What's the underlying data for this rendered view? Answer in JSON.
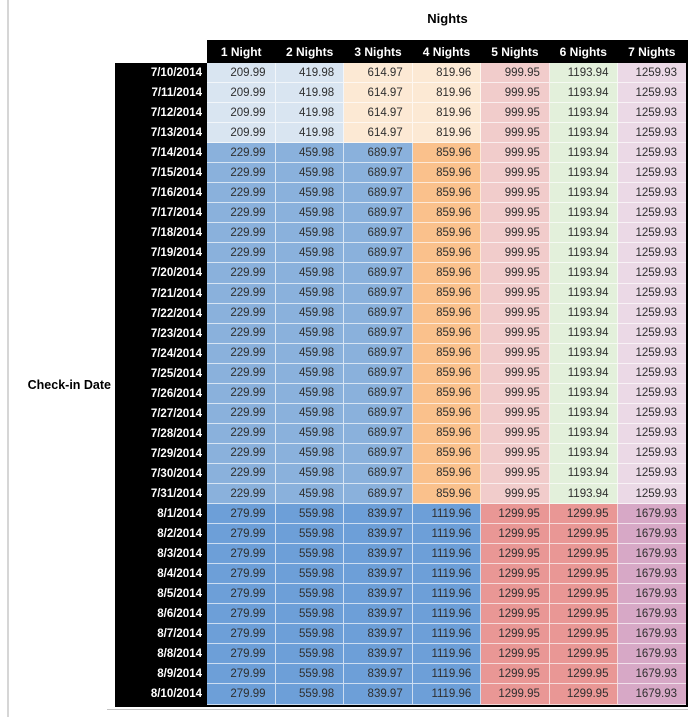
{
  "page": {
    "background": "#ffffff",
    "left_gridline_color": "#d6d6d6"
  },
  "colors": {
    "header_bg": "#000000",
    "header_text": "#ffffff",
    "value_text": "#2f2f2f",
    "bands": {
      "early": [
        "#D9E5F1",
        "#D9E5F1",
        "#FCE9D4",
        "#FCE9D4",
        "#F1CCCB",
        "#E3F0DB",
        "#EBD9E6"
      ],
      "mid": [
        "#8AB1DC",
        "#8AB1DC",
        "#8AB1DC",
        "#FAC18C",
        "#F1CCCB",
        "#E3F0DB",
        "#EBD9E6"
      ],
      "late": [
        "#6D9FD8",
        "#6D9FD8",
        "#6D9FD8",
        "#6D9FD8",
        "#E99795",
        "#E99795",
        "#D7A8C6"
      ]
    }
  },
  "chart_data": {
    "type": "table",
    "title": "Nights",
    "row_axis_label": "Check-in Date",
    "columns": [
      "1 Night",
      "2 Nights",
      "3 Nights",
      "4 Nights",
      "5 Nights",
      "6 Nights",
      "7 Nights"
    ],
    "rows": [
      {
        "date": "7/10/2014",
        "band": "early",
        "values": [
          209.99,
          419.98,
          614.97,
          819.96,
          999.95,
          1193.94,
          1259.93
        ]
      },
      {
        "date": "7/11/2014",
        "band": "early",
        "values": [
          209.99,
          419.98,
          614.97,
          819.96,
          999.95,
          1193.94,
          1259.93
        ]
      },
      {
        "date": "7/12/2014",
        "band": "early",
        "values": [
          209.99,
          419.98,
          614.97,
          819.96,
          999.95,
          1193.94,
          1259.93
        ]
      },
      {
        "date": "7/13/2014",
        "band": "early",
        "values": [
          209.99,
          419.98,
          614.97,
          819.96,
          999.95,
          1193.94,
          1259.93
        ]
      },
      {
        "date": "7/14/2014",
        "band": "mid",
        "values": [
          229.99,
          459.98,
          689.97,
          859.96,
          999.95,
          1193.94,
          1259.93
        ]
      },
      {
        "date": "7/15/2014",
        "band": "mid",
        "values": [
          229.99,
          459.98,
          689.97,
          859.96,
          999.95,
          1193.94,
          1259.93
        ]
      },
      {
        "date": "7/16/2014",
        "band": "mid",
        "values": [
          229.99,
          459.98,
          689.97,
          859.96,
          999.95,
          1193.94,
          1259.93
        ]
      },
      {
        "date": "7/17/2014",
        "band": "mid",
        "values": [
          229.99,
          459.98,
          689.97,
          859.96,
          999.95,
          1193.94,
          1259.93
        ]
      },
      {
        "date": "7/18/2014",
        "band": "mid",
        "values": [
          229.99,
          459.98,
          689.97,
          859.96,
          999.95,
          1193.94,
          1259.93
        ]
      },
      {
        "date": "7/19/2014",
        "band": "mid",
        "values": [
          229.99,
          459.98,
          689.97,
          859.96,
          999.95,
          1193.94,
          1259.93
        ]
      },
      {
        "date": "7/20/2014",
        "band": "mid",
        "values": [
          229.99,
          459.98,
          689.97,
          859.96,
          999.95,
          1193.94,
          1259.93
        ]
      },
      {
        "date": "7/21/2014",
        "band": "mid",
        "values": [
          229.99,
          459.98,
          689.97,
          859.96,
          999.95,
          1193.94,
          1259.93
        ]
      },
      {
        "date": "7/22/2014",
        "band": "mid",
        "values": [
          229.99,
          459.98,
          689.97,
          859.96,
          999.95,
          1193.94,
          1259.93
        ]
      },
      {
        "date": "7/23/2014",
        "band": "mid",
        "values": [
          229.99,
          459.98,
          689.97,
          859.96,
          999.95,
          1193.94,
          1259.93
        ]
      },
      {
        "date": "7/24/2014",
        "band": "mid",
        "values": [
          229.99,
          459.98,
          689.97,
          859.96,
          999.95,
          1193.94,
          1259.93
        ]
      },
      {
        "date": "7/25/2014",
        "band": "mid",
        "values": [
          229.99,
          459.98,
          689.97,
          859.96,
          999.95,
          1193.94,
          1259.93
        ]
      },
      {
        "date": "7/26/2014",
        "band": "mid",
        "values": [
          229.99,
          459.98,
          689.97,
          859.96,
          999.95,
          1193.94,
          1259.93
        ]
      },
      {
        "date": "7/27/2014",
        "band": "mid",
        "values": [
          229.99,
          459.98,
          689.97,
          859.96,
          999.95,
          1193.94,
          1259.93
        ]
      },
      {
        "date": "7/28/2014",
        "band": "mid",
        "values": [
          229.99,
          459.98,
          689.97,
          859.96,
          999.95,
          1193.94,
          1259.93
        ]
      },
      {
        "date": "7/29/2014",
        "band": "mid",
        "values": [
          229.99,
          459.98,
          689.97,
          859.96,
          999.95,
          1193.94,
          1259.93
        ]
      },
      {
        "date": "7/30/2014",
        "band": "mid",
        "values": [
          229.99,
          459.98,
          689.97,
          859.96,
          999.95,
          1193.94,
          1259.93
        ]
      },
      {
        "date": "7/31/2014",
        "band": "mid",
        "values": [
          229.99,
          459.98,
          689.97,
          859.96,
          999.95,
          1193.94,
          1259.93
        ]
      },
      {
        "date": "8/1/2014",
        "band": "late",
        "values": [
          279.99,
          559.98,
          839.97,
          1119.96,
          1299.95,
          1299.95,
          1679.93
        ]
      },
      {
        "date": "8/2/2014",
        "band": "late",
        "values": [
          279.99,
          559.98,
          839.97,
          1119.96,
          1299.95,
          1299.95,
          1679.93
        ]
      },
      {
        "date": "8/3/2014",
        "band": "late",
        "values": [
          279.99,
          559.98,
          839.97,
          1119.96,
          1299.95,
          1299.95,
          1679.93
        ]
      },
      {
        "date": "8/4/2014",
        "band": "late",
        "values": [
          279.99,
          559.98,
          839.97,
          1119.96,
          1299.95,
          1299.95,
          1679.93
        ]
      },
      {
        "date": "8/5/2014",
        "band": "late",
        "values": [
          279.99,
          559.98,
          839.97,
          1119.96,
          1299.95,
          1299.95,
          1679.93
        ]
      },
      {
        "date": "8/6/2014",
        "band": "late",
        "values": [
          279.99,
          559.98,
          839.97,
          1119.96,
          1299.95,
          1299.95,
          1679.93
        ]
      },
      {
        "date": "8/7/2014",
        "band": "late",
        "values": [
          279.99,
          559.98,
          839.97,
          1119.96,
          1299.95,
          1299.95,
          1679.93
        ]
      },
      {
        "date": "8/8/2014",
        "band": "late",
        "values": [
          279.99,
          559.98,
          839.97,
          1119.96,
          1299.95,
          1299.95,
          1679.93
        ]
      },
      {
        "date": "8/9/2014",
        "band": "late",
        "values": [
          279.99,
          559.98,
          839.97,
          1119.96,
          1299.95,
          1299.95,
          1679.93
        ]
      },
      {
        "date": "8/10/2014",
        "band": "late",
        "values": [
          279.99,
          559.98,
          839.97,
          1119.96,
          1299.95,
          1299.95,
          1679.93
        ]
      }
    ]
  }
}
